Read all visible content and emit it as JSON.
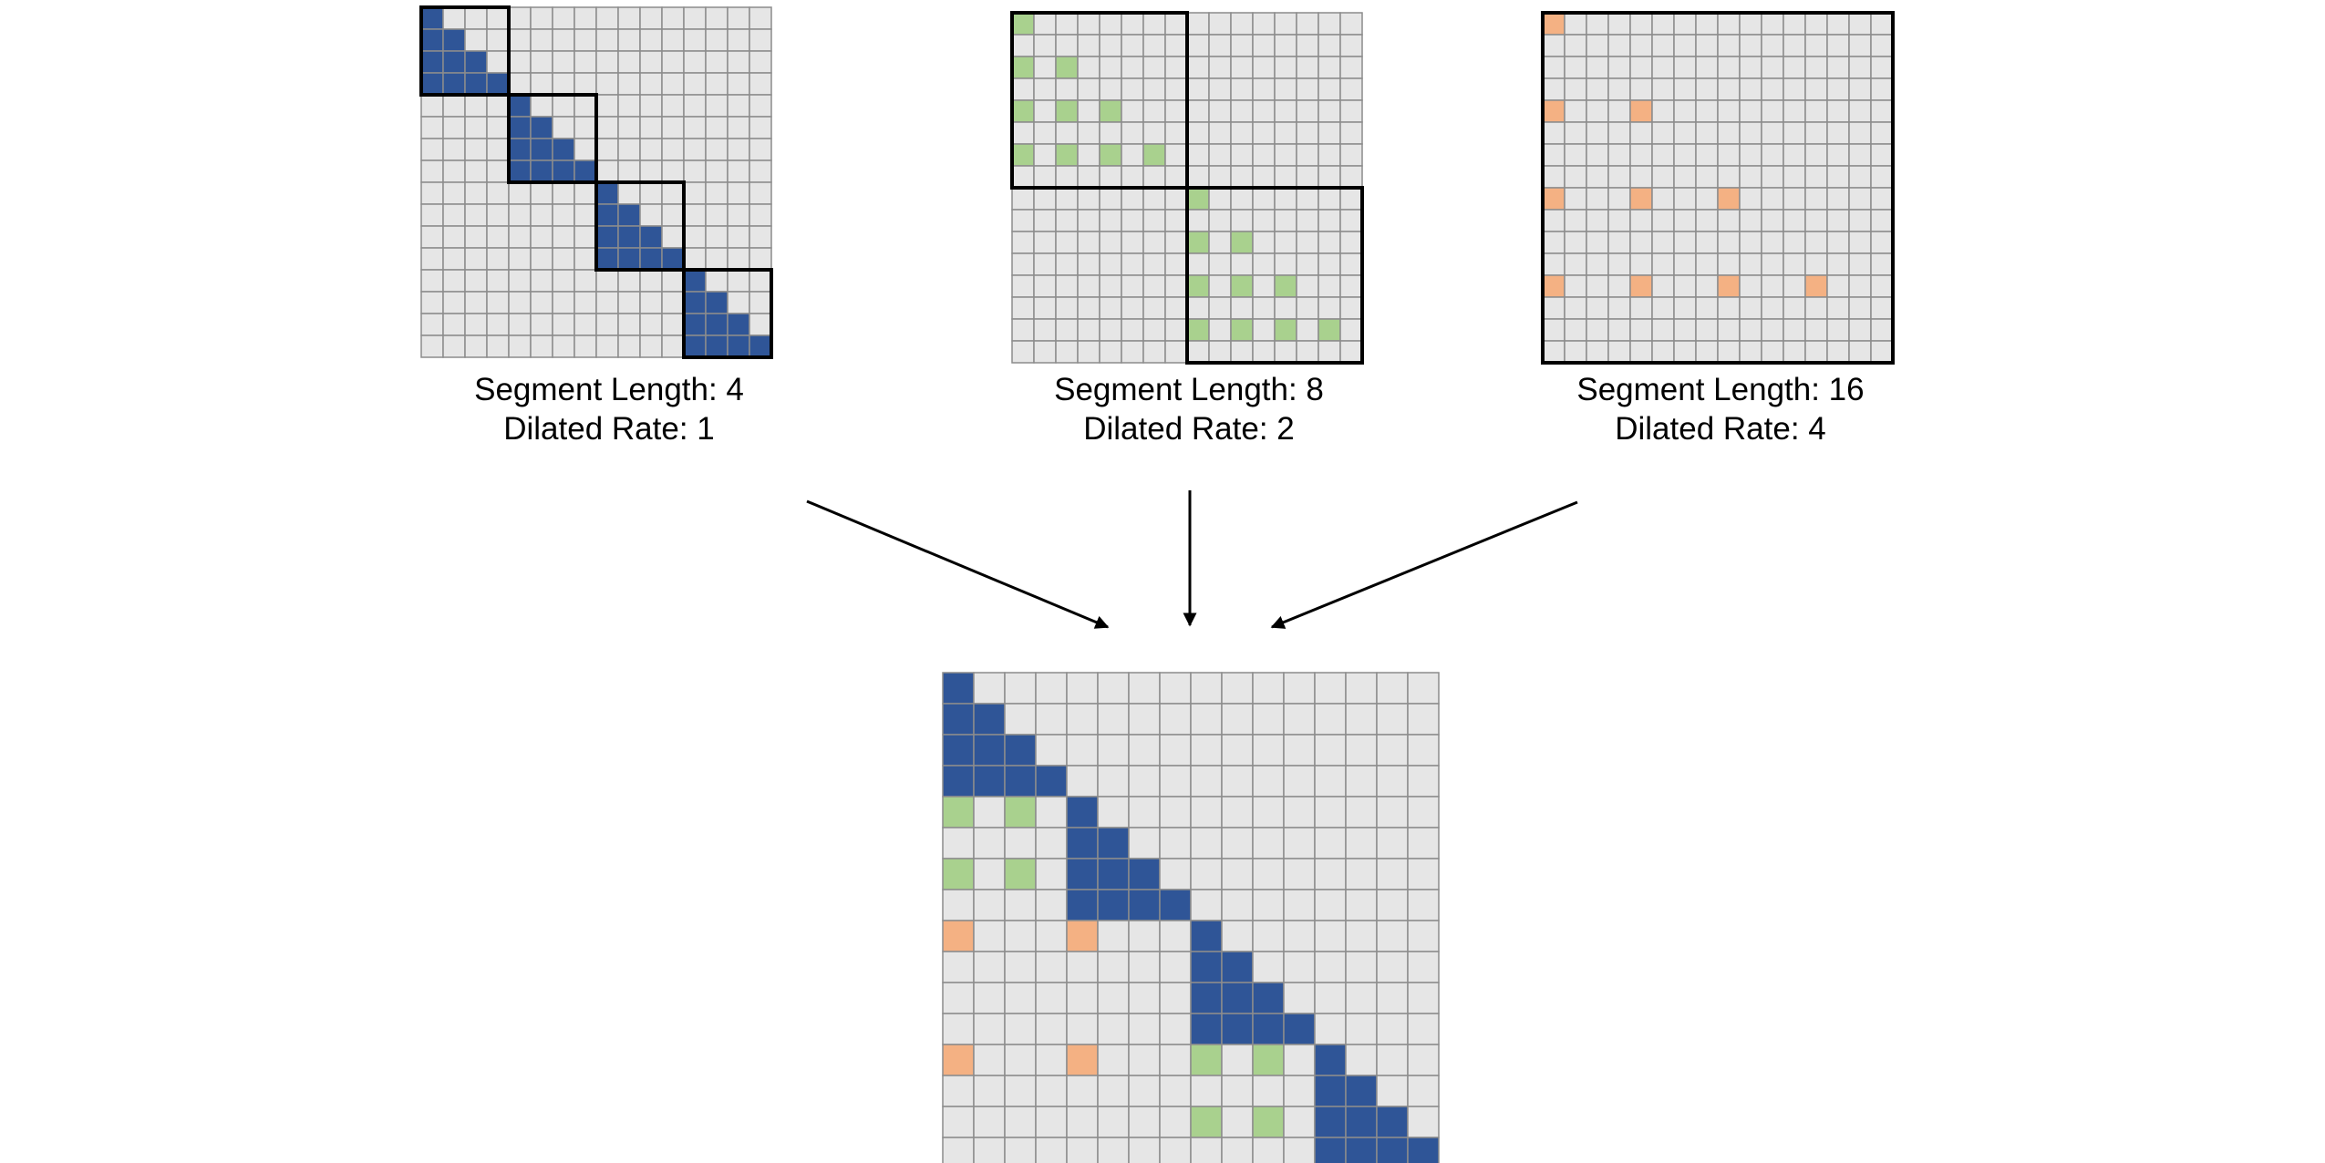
{
  "colors": {
    "blue": "#2f5597",
    "green": "#a9d18e",
    "orange": "#f4b183",
    "empty": "#e6e6e6",
    "grid": "#8c8c8c",
    "border": "#000000",
    "arrow": "#000000"
  },
  "matrix_size": 16,
  "panels": [
    {
      "segment_label": "Segment Length: 4",
      "dilated_label": "Dilated Rate: 1",
      "segment_length": 4,
      "dilated_rate": 1,
      "color": "blue"
    },
    {
      "segment_label": "Segment Length: 8",
      "dilated_label": "Dilated Rate: 2",
      "segment_length": 8,
      "dilated_rate": 2,
      "color": "green"
    },
    {
      "segment_label": "Segment Length: 16",
      "dilated_label": "Dilated Rate: 4",
      "segment_length": 16,
      "dilated_rate": 4,
      "color": "orange"
    }
  ]
}
